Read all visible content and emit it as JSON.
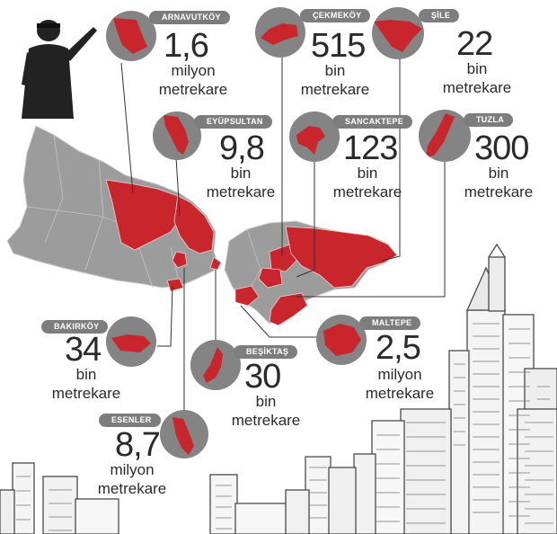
{
  "colors": {
    "highlight_red": "#c8262c",
    "map_grey": "#9a9a9a",
    "disc_grey": "#848484",
    "pill_grey": "#7d7d7d",
    "ink": "#2a2a2a"
  },
  "icons": {
    "soldier": "armed-soldier-silhouette-icon",
    "skyline": "sketched-city-skyline-illustration"
  },
  "districts": [
    {
      "id": "arnavutkoy",
      "name": "ARNAVUTKÖY",
      "value": "1,6",
      "unit_line1": "milyon",
      "unit_line2": "metrekare"
    },
    {
      "id": "cekmekoy",
      "name": "ÇEKMEKÖY",
      "value": "515",
      "unit_line1": "bin",
      "unit_line2": "metrekare"
    },
    {
      "id": "sile",
      "name": "ŞİLE",
      "value": "22",
      "unit_line1": "bin",
      "unit_line2": "metrekare"
    },
    {
      "id": "eyupsultan",
      "name": "EYÜPSULTAN",
      "value": "9,8",
      "unit_line1": "bin",
      "unit_line2": "metrekare"
    },
    {
      "id": "sancaktepe",
      "name": "SANCAKTEPE",
      "value": "123",
      "unit_line1": "bin",
      "unit_line2": "metrekare"
    },
    {
      "id": "tuzla",
      "name": "TUZLA",
      "value": "300",
      "unit_line1": "bin",
      "unit_line2": "metrekare"
    },
    {
      "id": "bakirkoy",
      "name": "BAKIRKÖY",
      "value": "34",
      "unit_line1": "bin",
      "unit_line2": "metrekare"
    },
    {
      "id": "maltepe",
      "name": "MALTEPE",
      "value": "2,5",
      "unit_line1": "milyon",
      "unit_line2": "metrekare"
    },
    {
      "id": "besiktas",
      "name": "BEŞİKTAŞ",
      "value": "30",
      "unit_line1": "bin",
      "unit_line2": "metrekare"
    },
    {
      "id": "esenler",
      "name": "ESENLER",
      "value": "8,7",
      "unit_line1": "milyon",
      "unit_line2": "metrekare"
    }
  ]
}
